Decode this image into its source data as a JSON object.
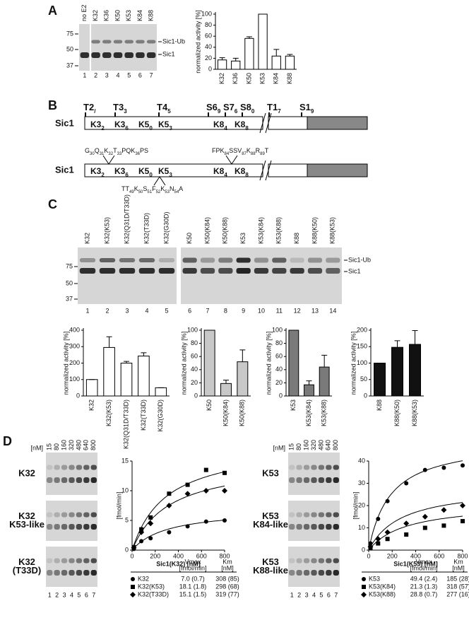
{
  "panels": {
    "a": "A",
    "b": "B",
    "c": "C",
    "d": "D"
  },
  "gel_a": {
    "lanes": [
      "no E2",
      "K32",
      "K36",
      "K50",
      "K53",
      "K84",
      "K88"
    ],
    "numbers": [
      "1",
      "2",
      "3",
      "4",
      "5",
      "6",
      "7"
    ],
    "markers": [
      75,
      50,
      37
    ],
    "bands": [
      "Sic1-Ub",
      "Sic1"
    ]
  },
  "diagram": {
    "protein": "Sic1",
    "sites": [
      [
        "T",
        "2/5"
      ],
      [
        "T",
        "33"
      ],
      [
        "T",
        "45"
      ],
      [
        "S",
        "69"
      ],
      [
        "S",
        "76"
      ],
      [
        "S",
        "80"
      ],
      [
        "T",
        "173"
      ],
      [
        "S",
        "191"
      ]
    ],
    "lysines": [
      [
        "K",
        "32"
      ],
      [
        "K",
        "36"
      ],
      [
        "K",
        "50"
      ],
      [
        "K",
        "53"
      ],
      [
        "K",
        "84"
      ],
      [
        "K",
        "88"
      ]
    ],
    "seq1": [
      [
        "G",
        "30"
      ],
      [
        "Q",
        "31"
      ],
      [
        "K",
        "32"
      ],
      [
        "T",
        "33"
      ],
      [
        "PQK",
        "36"
      ],
      [
        "PS"
      ]
    ],
    "seq2": [
      [
        "FPK",
        "84"
      ],
      [
        "SSV",
        "87"
      ],
      [
        "K",
        "88"
      ],
      [
        "R",
        "89"
      ],
      [
        "T"
      ]
    ],
    "seq3": [
      [
        "TT",
        "49"
      ],
      [
        "K",
        "50"
      ],
      [
        "S",
        "51"
      ],
      [
        "F",
        "52"
      ],
      [
        "K",
        "53"
      ],
      [
        "N",
        "54"
      ],
      [
        "A"
      ]
    ]
  },
  "gel_c": {
    "lanes": [
      "K32",
      "K32(K53)",
      "K32(Q31D/T33D)",
      "K32(T33D)",
      "K32(G30D)",
      "K50",
      "K50(K84)",
      "K50(K88)",
      "K53",
      "K53(K84)",
      "K53(K88)",
      "K88",
      "K88(K50)",
      "K88(K53)"
    ],
    "numbers": [
      "1",
      "2",
      "3",
      "4",
      "5",
      "6",
      "7",
      "8",
      "9",
      "10",
      "11",
      "12",
      "13",
      "14"
    ],
    "markers": [
      75,
      50,
      37
    ],
    "bands": [
      "Sic1-Ub",
      "Sic1"
    ]
  },
  "gel_d": {
    "concentration_label": "[nM]",
    "concentrations": [
      "15",
      "80",
      "160",
      "320",
      "480",
      "640",
      "800"
    ],
    "numbers": [
      "1",
      "2",
      "3",
      "4",
      "5",
      "6",
      "7"
    ],
    "left_labels": [
      [
        "K32"
      ],
      [
        "K32",
        "K53-like"
      ],
      [
        "K32",
        "(T33D)"
      ]
    ],
    "right_labels": [
      [
        "K53"
      ],
      [
        "K53",
        "K84-like"
      ],
      [
        "K53",
        "K88-like"
      ]
    ]
  },
  "chart_data": [
    {
      "type": "bar",
      "ylabel": "normalized activity [%]",
      "categories": [
        "K32",
        "K36",
        "K50",
        "K53",
        "K84",
        "K88"
      ],
      "values": [
        17,
        15,
        56,
        100,
        24,
        24
      ],
      "errors": [
        4,
        5,
        3,
        0,
        12,
        3
      ],
      "color": "#ffffff",
      "ylim": [
        0,
        100
      ],
      "yticks": [
        0,
        20,
        40,
        60,
        80,
        100
      ]
    },
    {
      "type": "bar",
      "ylabel": "normalized activity [%]",
      "categories": [
        "K32",
        "K32(K53)",
        "K32(Q31D/T33D)",
        "K32(T33D)",
        "K32(G30D)"
      ],
      "values": [
        100,
        295,
        200,
        243,
        50
      ],
      "errors": [
        0,
        65,
        10,
        20,
        0
      ],
      "color": "#ffffff",
      "ylim": [
        0,
        400
      ],
      "yticks": [
        0,
        100,
        200,
        300,
        400
      ]
    },
    {
      "type": "bar",
      "ylabel": "normalized activity [%]",
      "categories": [
        "K50",
        "K50(K84)",
        "K50(K88)"
      ],
      "values": [
        100,
        19,
        52
      ],
      "errors": [
        0,
        5,
        18
      ],
      "color": "#c8c8c8",
      "ylim": [
        0,
        100
      ],
      "yticks": [
        0,
        20,
        40,
        60,
        80,
        100
      ]
    },
    {
      "type": "bar",
      "ylabel": "normalized activity [%]",
      "categories": [
        "K53",
        "K53(K84)",
        "K53(K88)"
      ],
      "values": [
        100,
        17,
        44
      ],
      "errors": [
        0,
        6,
        18
      ],
      "color": "#7a7a7a",
      "ylim": [
        0,
        100
      ],
      "yticks": [
        0,
        20,
        40,
        60,
        80,
        100
      ]
    },
    {
      "type": "bar",
      "ylabel": "normalized activity [%]",
      "categories": [
        "K88",
        "K88(K50)",
        "K88(K53)"
      ],
      "values": [
        100,
        148,
        157
      ],
      "errors": [
        0,
        20,
        42
      ],
      "color": "#111111",
      "ylim": [
        0,
        200
      ],
      "yticks": [
        0,
        50,
        100,
        150,
        200
      ]
    },
    {
      "type": "scatter",
      "ylabel": "[fmol/min]",
      "xlabel": "Sic1(K32) [nM]",
      "x": [
        15,
        80,
        160,
        320,
        480,
        640,
        800
      ],
      "xlim": [
        0,
        800
      ],
      "xticks": [
        0,
        200,
        400,
        600,
        800
      ],
      "ylim": [
        0,
        15
      ],
      "yticks": [
        0,
        5,
        10,
        15
      ],
      "table_headers": [
        [
          "Vmax",
          "[fmol/min]"
        ],
        [
          "Km",
          "[nM]"
        ]
      ],
      "series": [
        {
          "name": "K32",
          "marker": "circle",
          "values": [
            0.2,
            1.5,
            2.0,
            3.0,
            4.0,
            4.8,
            5.0
          ],
          "vmax": 7.0,
          "vmax_label": "7.0 (0.7)",
          "km": 308,
          "km_label": "308 (85)"
        },
        {
          "name": "K32(K53)",
          "marker": "square",
          "values": [
            0.5,
            3.5,
            5.5,
            9.5,
            11,
            13.5,
            13
          ],
          "vmax": 18.1,
          "vmax_label": "18.1 (1.8)",
          "km": 298,
          "km_label": "298 (68)"
        },
        {
          "name": "K32(T33D)",
          "marker": "diamond",
          "values": [
            0.4,
            3,
            4.5,
            7.5,
            9.5,
            10,
            10
          ],
          "vmax": 15.1,
          "vmax_label": "15.1 (1.5)",
          "km": 319,
          "km_label": "319 (77)"
        }
      ]
    },
    {
      "type": "scatter",
      "ylabel": "[fmol/min]",
      "xlabel": "Sic1(K53) [nM]",
      "x": [
        15,
        80,
        160,
        320,
        480,
        640,
        800
      ],
      "xlim": [
        0,
        800
      ],
      "xticks": [
        0,
        200,
        400,
        600,
        800
      ],
      "ylim": [
        0,
        40
      ],
      "yticks": [
        0,
        10,
        20,
        30,
        40
      ],
      "table_headers": [
        [
          "Vmax",
          "[fmol/min]"
        ],
        [
          "Km",
          "[nM]"
        ]
      ],
      "series": [
        {
          "name": "K53",
          "marker": "circle",
          "values": [
            3,
            14,
            22,
            30,
            36,
            37,
            38
          ],
          "vmax": 49.4,
          "vmax_label": "49.4 (2.4)",
          "km": 185,
          "km_label": "185 (28)"
        },
        {
          "name": "K53(K84)",
          "marker": "square",
          "values": [
            1,
            3,
            5,
            7,
            10,
            11,
            13
          ],
          "vmax": 21.3,
          "vmax_label": "21.3 (1.3)",
          "km": 318,
          "km_label": "318 (57)"
        },
        {
          "name": "K53(K88)",
          "marker": "diamond",
          "values": [
            1.5,
            5,
            8,
            12,
            15,
            18,
            20
          ],
          "vmax": 28.8,
          "vmax_label": "28.8 (0.7)",
          "km": 277,
          "km_label": "277 (16)"
        }
      ]
    }
  ]
}
